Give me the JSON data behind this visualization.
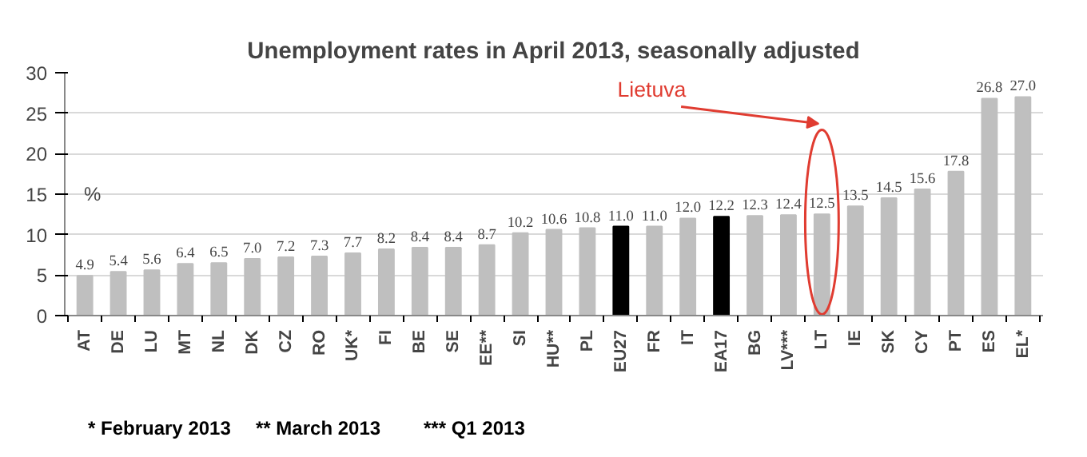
{
  "chart_data": {
    "type": "bar",
    "title": "Unemployment rates in April 2013, seasonally adjusted",
    "ylabel": "%",
    "categories": [
      "AT",
      "DE",
      "LU",
      "MT",
      "NL",
      "DK",
      "CZ",
      "RO",
      "UK*",
      "FI",
      "BE",
      "SE",
      "EE**",
      "SI",
      "HU**",
      "PL",
      "EU27",
      "FR",
      "IT",
      "EA17",
      "BG",
      "LV***",
      "LT",
      "IE",
      "SK",
      "CY",
      "PT",
      "ES",
      "EL*"
    ],
    "values": [
      4.9,
      5.4,
      5.6,
      6.4,
      6.5,
      7.0,
      7.2,
      7.3,
      7.7,
      8.2,
      8.4,
      8.4,
      8.7,
      10.2,
      10.6,
      10.8,
      11.0,
      11.0,
      12.0,
      12.2,
      12.3,
      12.4,
      12.5,
      13.5,
      14.5,
      15.6,
      17.8,
      26.8,
      27.0
    ],
    "value_labels": [
      "4.9",
      "5.4",
      "5.6",
      "6.4",
      "6.5",
      "7.0",
      "7.2",
      "7.3",
      "7.7",
      "8.2",
      "8.4",
      "8.4",
      "8.7",
      "10.2",
      "10.6",
      "10.8",
      "11.0",
      "11.0",
      "12.0",
      "12.2",
      "12.3",
      "12.4",
      "12.5",
      "13.5",
      "14.5",
      "15.6",
      "17.8",
      "26.8",
      "27.0"
    ],
    "colors": [
      "#bfbfbf",
      "#bfbfbf",
      "#bfbfbf",
      "#bfbfbf",
      "#bfbfbf",
      "#bfbfbf",
      "#bfbfbf",
      "#bfbfbf",
      "#bfbfbf",
      "#bfbfbf",
      "#bfbfbf",
      "#bfbfbf",
      "#bfbfbf",
      "#bfbfbf",
      "#bfbfbf",
      "#bfbfbf",
      "#000000",
      "#bfbfbf",
      "#bfbfbf",
      "#000000",
      "#bfbfbf",
      "#bfbfbf",
      "#bfbfbf",
      "#bfbfbf",
      "#bfbfbf",
      "#bfbfbf",
      "#bfbfbf",
      "#bfbfbf",
      "#bfbfbf"
    ],
    "ylim": [
      0,
      30
    ],
    "yticks": [
      0,
      5,
      10,
      15,
      20,
      25,
      30
    ],
    "grid": "y",
    "annotations": [
      "Lietuva",
      "* February 2013",
      "** March 2013",
      "*** Q1 2013"
    ]
  }
}
